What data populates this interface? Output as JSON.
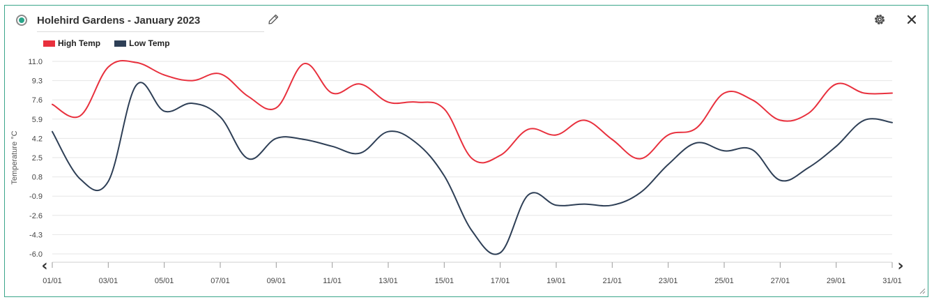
{
  "widget": {
    "title": "Holehird Gardens - January 2023",
    "icons": [
      "radio-selected-icon",
      "pencil-icon",
      "gear-icon",
      "close-icon",
      "resize-icon"
    ]
  },
  "colors": {
    "high": "#e8303d",
    "low": "#2e3f56",
    "border": "#3aa58a",
    "grid": "#e6e6e6"
  },
  "nav": {
    "prev": "‹",
    "next": "›"
  },
  "chart_data": {
    "type": "line",
    "title": "",
    "xlabel": "",
    "ylabel": "Temperature °C",
    "ylim": [
      -6.0,
      11.0
    ],
    "yticks": [
      "11.0",
      "9.3",
      "7.6",
      "5.9",
      "4.2",
      "2.5",
      "0.8",
      "-0.9",
      "-2.6",
      "-4.3",
      "-6.0"
    ],
    "xticks": [
      "01/01",
      "03/01",
      "05/01",
      "07/01",
      "09/01",
      "11/01",
      "13/01",
      "15/01",
      "17/01",
      "19/01",
      "21/01",
      "23/01",
      "25/01",
      "27/01",
      "29/01",
      "31/01"
    ],
    "x": [
      "01/01",
      "02/01",
      "03/01",
      "04/01",
      "05/01",
      "06/01",
      "07/01",
      "08/01",
      "09/01",
      "10/01",
      "11/01",
      "12/01",
      "13/01",
      "14/01",
      "15/01",
      "16/01",
      "17/01",
      "18/01",
      "19/01",
      "20/01",
      "21/01",
      "22/01",
      "23/01",
      "24/01",
      "25/01",
      "26/01",
      "27/01",
      "28/01",
      "29/01",
      "30/01",
      "31/01"
    ],
    "grid": true,
    "legend_position": "top-left",
    "series": [
      {
        "name": "High Temp",
        "values": [
          7.2,
          6.2,
          10.5,
          10.9,
          9.8,
          9.3,
          9.9,
          7.9,
          6.9,
          10.8,
          8.2,
          9.0,
          7.4,
          7.4,
          6.8,
          2.4,
          2.7,
          5.0,
          4.5,
          5.8,
          4.1,
          2.4,
          4.5,
          5.1,
          8.2,
          7.6,
          5.8,
          6.4,
          9.0,
          8.2,
          8.2
        ]
      },
      {
        "name": "Low Temp",
        "values": [
          4.8,
          0.6,
          0.4,
          8.9,
          6.6,
          7.3,
          6.1,
          2.4,
          4.2,
          4.1,
          3.5,
          2.9,
          4.8,
          3.8,
          0.9,
          -4.0,
          -5.9,
          -0.8,
          -1.7,
          -1.6,
          -1.7,
          -0.6,
          1.9,
          3.8,
          3.1,
          3.2,
          0.5,
          1.6,
          3.5,
          5.8,
          5.6
        ]
      }
    ]
  }
}
